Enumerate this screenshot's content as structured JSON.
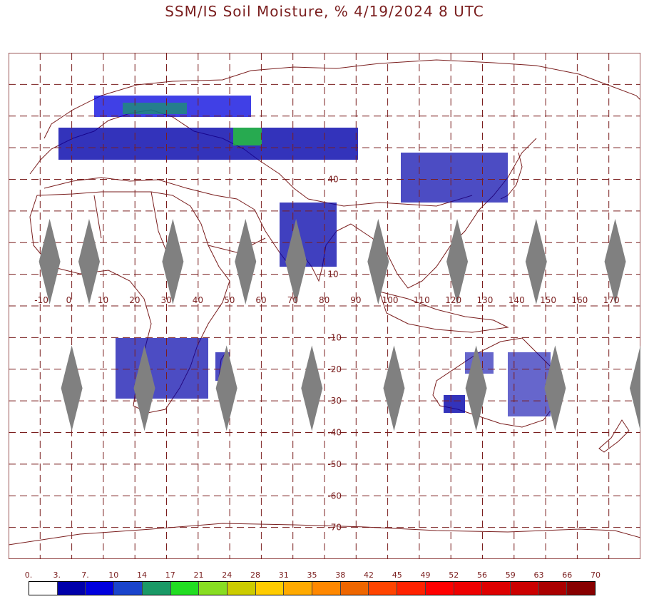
{
  "title": "SSM/IS Soil Moisture, % 4/19/2024 8 UTC",
  "map": {
    "projection": "equirectangular",
    "lon_range": [
      -20,
      180
    ],
    "lat_range": [
      -80,
      80
    ],
    "longitude_labels": [
      "-10",
      "0",
      "10",
      "20",
      "30",
      "40",
      "50",
      "60",
      "70",
      "80",
      "90",
      "100",
      "110",
      "120",
      "130",
      "140",
      "150",
      "160",
      "170"
    ],
    "latitude_labels": [
      "40",
      "10",
      "-10",
      "-20",
      "-30",
      "-40",
      "-50",
      "-60",
      "-70"
    ],
    "swath_gaps": [
      {
        "lon": -7,
        "lat": 14
      },
      {
        "lon": 5.5,
        "lat": 14
      },
      {
        "lon": 32,
        "lat": 14
      },
      {
        "lon": 55,
        "lat": 14
      },
      {
        "lon": 71,
        "lat": 14
      },
      {
        "lon": 97,
        "lat": 14
      },
      {
        "lon": 122,
        "lat": 14
      },
      {
        "lon": 147,
        "lat": 14
      },
      {
        "lon": 172,
        "lat": 14
      },
      {
        "lon": 0,
        "lat": -26
      },
      {
        "lon": 23,
        "lat": -26
      },
      {
        "lon": 49,
        "lat": -26
      },
      {
        "lon": 76,
        "lat": -26
      },
      {
        "lon": 102,
        "lat": -26
      },
      {
        "lon": 128,
        "lat": -26
      },
      {
        "lon": 153,
        "lat": -26
      },
      {
        "lon": 180,
        "lat": -26
      }
    ],
    "colors": {
      "frame": "#7a1e1e",
      "grid": "#7a1e1e",
      "coast": "#7a1e1e",
      "gap": "#808080"
    }
  },
  "legend": {
    "labels": [
      "0.",
      "3.",
      "7.",
      "10",
      "14",
      "17",
      "21",
      "24",
      "28",
      "31",
      "35",
      "38",
      "42",
      "45",
      "49",
      "52",
      "56",
      "59",
      "63",
      "66",
      "70"
    ],
    "colors": [
      "#ffffff",
      "#0000aa",
      "#0000dd",
      "#1a44cc",
      "#1a9966",
      "#22dd22",
      "#88dd22",
      "#cccc00",
      "#ffcc00",
      "#ffaa00",
      "#ff8800",
      "#ee6600",
      "#ff4400",
      "#ff2200",
      "#ff0000",
      "#ee0000",
      "#dd0000",
      "#cc0000",
      "#aa0000",
      "#880000"
    ]
  }
}
